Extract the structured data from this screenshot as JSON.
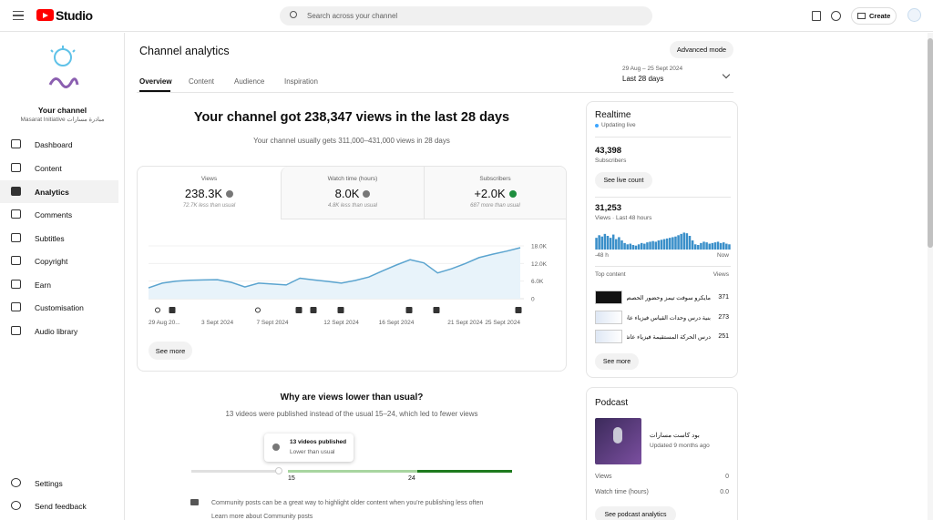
{
  "header": {
    "logo_text": "Studio",
    "search_placeholder": "Search across your channel",
    "create": "Create"
  },
  "sidebar": {
    "your_channel": "Your channel",
    "channel_name": "مبادرة مسارات Masarat Initiative",
    "nav": [
      "Dashboard",
      "Content",
      "Analytics",
      "Comments",
      "Subtitles",
      "Copyright",
      "Earn",
      "Customisation",
      "Audio library"
    ],
    "bottom": [
      "Settings",
      "Send feedback"
    ]
  },
  "page": {
    "title": "Channel analytics",
    "tabs": [
      "Overview",
      "Content",
      "Audience",
      "Inspiration"
    ],
    "advanced": "Advanced mode",
    "date_range": "29 Aug – 25 Sept 2024",
    "period": "Last 28 days"
  },
  "overview": {
    "headline": "Your channel got 238,347 views in the last 28 days",
    "subline": "Your channel usually gets 311,000–431,000 views in 28 days",
    "metrics": [
      {
        "label": "Views",
        "value": "238.3K",
        "note": "72.7K less than usual"
      },
      {
        "label": "Watch time (hours)",
        "value": "8.0K",
        "note": "4.8K less than usual"
      },
      {
        "label": "Subscribers",
        "value": "+2.0K",
        "note": "687 more than usual"
      }
    ],
    "see_more": "See more"
  },
  "chart_data": [
    {
      "type": "line",
      "categories": [
        "29 Aug 20...",
        null,
        null,
        null,
        null,
        "3 Sept 2024",
        null,
        null,
        null,
        "7 Sept 2024",
        null,
        null,
        null,
        null,
        "12 Sept 2024",
        null,
        null,
        null,
        "16 Sept 2024",
        null,
        null,
        null,
        null,
        "21 Sept 2024",
        null,
        null,
        null,
        "25 Sept 2024"
      ],
      "values": [
        3700,
        5300,
        6000,
        6300,
        6400,
        6500,
        5600,
        4000,
        5300,
        5000,
        4700,
        7000,
        6400,
        5900,
        5300,
        6200,
        7400,
        9500,
        11500,
        13300,
        12200,
        8800,
        10200,
        12000,
        14000,
        15200,
        16200,
        17400
      ],
      "color": "#5ba4cf",
      "ylim": [
        0,
        20000
      ],
      "yticks": [
        0,
        {
          "value": 6000,
          "label": "6.0K"
        },
        {
          "value": 12000,
          "label": "12.0K"
        },
        {
          "value": 18000,
          "label": "18.0K"
        }
      ],
      "grid": true
    },
    {
      "type": "bar",
      "values": [
        900,
        1100,
        1000,
        1200,
        1050,
        900,
        1150,
        800,
        950,
        700,
        500,
        400,
        450,
        350,
        300,
        400,
        500,
        450,
        550,
        600,
        650,
        600,
        700,
        750,
        800,
        850,
        900,
        950,
        1000,
        1100,
        1200,
        1300,
        1250,
        1050,
        700,
        400,
        350,
        500,
        600,
        550,
        450,
        500,
        550,
        600,
        500,
        550,
        450,
        400
      ],
      "color": "#3a8fc9",
      "ylim": [
        0,
        1400
      ]
    }
  ],
  "why": {
    "title": "Why are views lower than usual?",
    "text": "13 videos were published instead of the usual 15–24, which led to fewer views",
    "tooltip_title": "13 videos published",
    "tooltip_sub": "Lower than usual",
    "range_low": "15",
    "range_high": "24",
    "community": "Community posts can be a great way to highlight older content when you're publishing less often",
    "link": "Learn more about Community posts"
  },
  "realtime": {
    "title": "Realtime",
    "status": "Updating live",
    "subscribers": "43,398",
    "subscribers_label": "Subscribers",
    "live_button": "See live count",
    "views": "31,253",
    "views_label": "Views · Last 48 hours",
    "axis_start": "-48 h",
    "axis_end": "Now",
    "top_content": "Top content",
    "views_col": "Views",
    "items": [
      {
        "title": "مايكرو سوفت تيمز وحضور الحصص...",
        "views": 371
      },
      {
        "title": "بنية درس وحدات القياس فيزياء عاشر...",
        "views": 273
      },
      {
        "title": "درس الحركة المستقيمة فيزياء عاشر...",
        "views": 251
      }
    ],
    "see_more": "See more"
  },
  "podcast": {
    "title": "Podcast",
    "name": "بود كاست مسارات",
    "updated": "Updated 9 months ago",
    "views_label": "Views",
    "views": "0",
    "watch_label": "Watch time (hours)",
    "watch": "0.0",
    "button": "See podcast analytics"
  }
}
